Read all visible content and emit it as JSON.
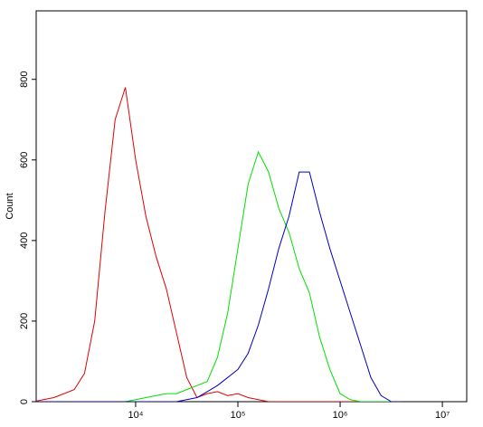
{
  "chart_data": {
    "type": "line",
    "y_label": "Count",
    "x_scale": "log",
    "xlim": [
      1065,
      17300000
    ],
    "ylim": [
      0,
      970
    ],
    "xticks": [
      {
        "value": 10000,
        "label": "10⁴"
      },
      {
        "value": 100000,
        "label": "10⁵"
      },
      {
        "value": 1000000,
        "label": "10⁶"
      },
      {
        "value": 10000000,
        "label": "10⁷"
      }
    ],
    "yticks": [
      0,
      200,
      400,
      600,
      800
    ],
    "x": [
      1000,
      1259,
      1585,
      1995,
      2512,
      3162,
      3981,
      5012,
      6310,
      7943,
      10000,
      12589,
      15849,
      19953,
      25119,
      31623,
      39811,
      50119,
      63096,
      79433,
      100000,
      125893,
      158489,
      199526,
      251189,
      316228,
      398107,
      501187,
      630957,
      794328,
      1000000,
      1258925,
      1584893,
      1995262,
      2511886,
      3162278,
      3981072
    ],
    "series": [
      {
        "color": "#e00000",
        "values": [
          0,
          5,
          10,
          20,
          30,
          70,
          200,
          470,
          700,
          780,
          600,
          460,
          360,
          280,
          170,
          60,
          10,
          20,
          25,
          15,
          20,
          10,
          5,
          0,
          0,
          0,
          0,
          0,
          0,
          0,
          0,
          0,
          0,
          0,
          0,
          0,
          0
        ]
      },
      {
        "color": "#00e000",
        "values": [
          0,
          0,
          0,
          0,
          0,
          0,
          0,
          0,
          0,
          0,
          5,
          10,
          15,
          20,
          20,
          30,
          40,
          50,
          110,
          220,
          380,
          540,
          620,
          570,
          480,
          420,
          330,
          270,
          160,
          80,
          20,
          5,
          0,
          0,
          0,
          0,
          0
        ]
      },
      {
        "color": "#0000c0",
        "values": [
          0,
          0,
          0,
          0,
          0,
          0,
          0,
          0,
          0,
          0,
          0,
          0,
          0,
          0,
          0,
          5,
          10,
          25,
          40,
          60,
          80,
          120,
          190,
          280,
          380,
          460,
          570,
          570,
          470,
          380,
          300,
          220,
          140,
          60,
          15,
          0,
          0
        ]
      }
    ]
  }
}
